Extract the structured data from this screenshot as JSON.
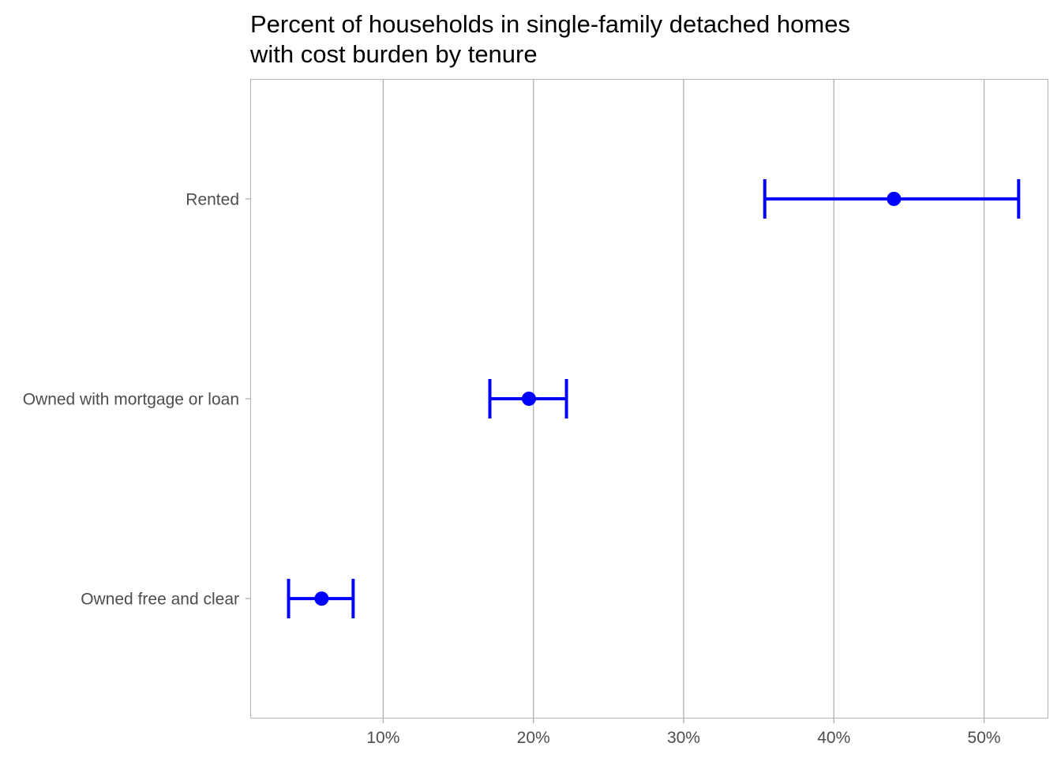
{
  "chart_data": {
    "type": "scatter",
    "title_lines": [
      "Percent of households in single-family detached homes",
      "with cost burden by tenure"
    ],
    "xlabel": "",
    "ylabel": "",
    "xlim": [
      0.0115,
      0.5428
    ],
    "x_ticks": [
      0.1,
      0.2,
      0.3,
      0.4,
      0.5
    ],
    "x_tick_labels": [
      "10%",
      "20%",
      "30%",
      "40%",
      "50%"
    ],
    "grid": {
      "vertical_major": true,
      "horizontal": false
    },
    "legend": "none",
    "categories": [
      "Rented",
      "Owned with mortgage or loan",
      "Owned free and clear"
    ],
    "points": [
      {
        "category": "Rented",
        "estimate": 0.44,
        "lower": 0.354,
        "upper": 0.523
      },
      {
        "category": "Owned with mortgage or loan",
        "estimate": 0.197,
        "lower": 0.171,
        "upper": 0.222
      },
      {
        "category": "Owned free and clear",
        "estimate": 0.059,
        "lower": 0.037,
        "upper": 0.08
      }
    ],
    "colors": {
      "point": "#0000ff",
      "grid": "#b3b3b3",
      "panel_border": "#b3b3b3",
      "tick_label": "#4d4d4d",
      "title": "#000000"
    }
  }
}
